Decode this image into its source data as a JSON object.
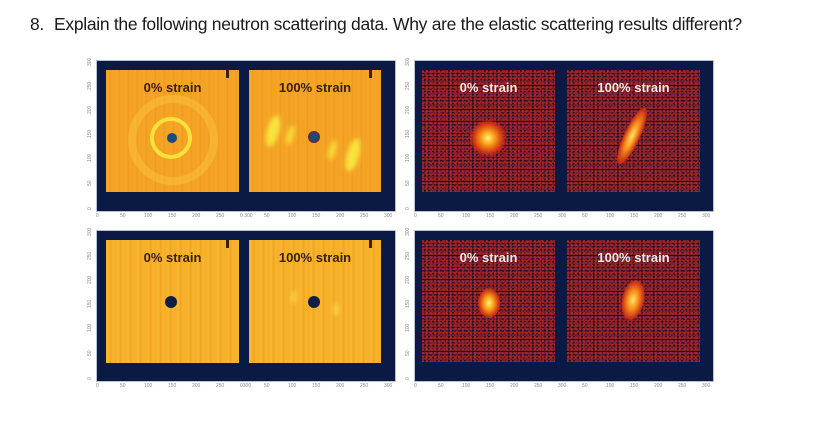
{
  "question": {
    "number": "8.",
    "text": "Explain the following neutron scattering data. Why are the elastic scattering results different?"
  },
  "figures": [
    {
      "id": "top-left",
      "type": "detector-image-pair",
      "colormap": "orange",
      "panels": [
        {
          "label": "0% strain",
          "pattern": "isotropic rings"
        },
        {
          "label": "100% strain",
          "pattern": "anisotropic arcs"
        }
      ],
      "x_ticks": [
        "0",
        "50",
        "100",
        "150",
        "200",
        "250",
        "0 300",
        "50",
        "100",
        "150",
        "200",
        "250",
        "300"
      ],
      "y_ticks": [
        "0",
        "50",
        "100",
        "150",
        "200",
        "250",
        "300"
      ]
    },
    {
      "id": "top-right",
      "type": "detector-image-pair",
      "colormap": "hot-dark",
      "panels": [
        {
          "label": "0% strain",
          "pattern": "central diffuse spot"
        },
        {
          "label": "100% strain",
          "pattern": "elongated diagonal streak"
        }
      ],
      "x_ticks": [
        "0",
        "50",
        "100",
        "150",
        "200",
        "250",
        "300",
        "50",
        "100",
        "150",
        "200",
        "250",
        "300"
      ],
      "y_ticks": [
        "0",
        "50",
        "100",
        "150",
        "200",
        "250",
        "300"
      ]
    },
    {
      "id": "bottom-left",
      "type": "detector-image-pair",
      "colormap": "orange",
      "panels": [
        {
          "label": "0% strain",
          "pattern": "featureless"
        },
        {
          "label": "100% strain",
          "pattern": "faint arcs"
        }
      ],
      "x_ticks": [
        "0",
        "50",
        "100",
        "150",
        "200",
        "250",
        "0300",
        "50",
        "100",
        "150",
        "200",
        "250",
        "300"
      ],
      "y_ticks": [
        "0",
        "50",
        "100",
        "150",
        "200",
        "250",
        "300"
      ]
    },
    {
      "id": "bottom-right",
      "type": "detector-image-pair",
      "colormap": "hot-dark",
      "panels": [
        {
          "label": "0% strain",
          "pattern": "small central spot"
        },
        {
          "label": "100% strain",
          "pattern": "slightly elongated spot"
        }
      ],
      "x_ticks": [
        "0",
        "50",
        "100",
        "150",
        "200",
        "250",
        "300",
        "50",
        "100",
        "150",
        "200",
        "250",
        "300"
      ],
      "y_ticks": [
        "0",
        "50",
        "100",
        "150",
        "200",
        "250",
        "300"
      ]
    }
  ]
}
